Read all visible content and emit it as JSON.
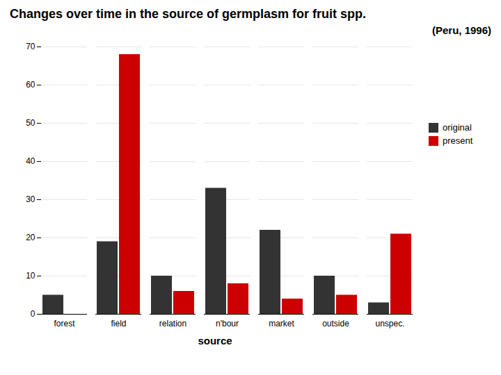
{
  "chart_data": {
    "type": "bar",
    "title": "Changes over time in the source of germplasm for fruit spp.",
    "subtitle": "(Peru, 1996)",
    "xlabel": "source",
    "categories": [
      "forest",
      "field",
      "relation",
      "n'bour",
      "market",
      "outside",
      "unspec."
    ],
    "series": [
      {
        "name": "original",
        "color": "#333333",
        "values": [
          5,
          19,
          10,
          33,
          22,
          10,
          3
        ]
      },
      {
        "name": "present",
        "color": "#cc0000",
        "values": [
          0,
          68,
          6,
          8,
          4,
          5,
          21
        ]
      }
    ],
    "ylim": [
      0,
      70
    ],
    "yticks": [
      0,
      10,
      20,
      30,
      40,
      50,
      60,
      70
    ],
    "grid": true,
    "legend": "right"
  }
}
